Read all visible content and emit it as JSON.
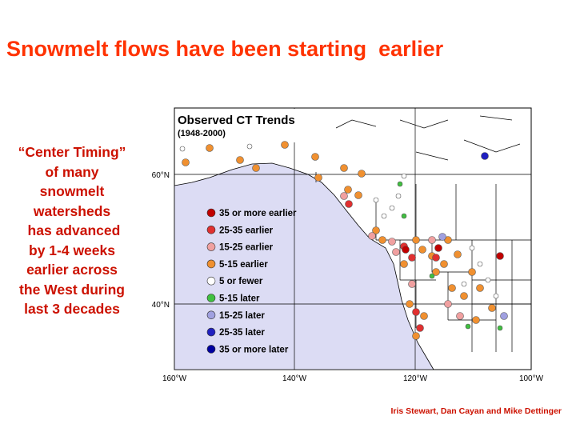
{
  "title": "Snowmelt flows have been starting  earlier",
  "description": [
    "“Center Timing”",
    "of many",
    "snowmelt",
    "watersheds",
    " has advanced",
    "by 1-4 weeks",
    "earlier across",
    "the West during",
    "last 3 decades"
  ],
  "map": {
    "title": "Observed CT Trends",
    "subtitle": "(1948-2000)",
    "latitude_labels": [
      "60°N",
      "40°N"
    ],
    "longitude_labels": [
      "160°W",
      "140°W",
      "120°W",
      "100°W"
    ],
    "legend": [
      {
        "label": "35 or more earlier",
        "color": "#c00000"
      },
      {
        "label": "25-35 earlier",
        "color": "#e03030"
      },
      {
        "label": "15-25 earlier",
        "color": "#f0a0a0"
      },
      {
        "label": "5-15 earlier",
        "color": "#f09030"
      },
      {
        "label": "5 or fewer",
        "color": "#ffffff"
      },
      {
        "label": "5-15 later",
        "color": "#40c040"
      },
      {
        "label": "15-25 later",
        "color": "#a0a0e0"
      },
      {
        "label": "25-35 later",
        "color": "#2020c0"
      },
      {
        "label": "35 or more later",
        "color": "#0000a0"
      }
    ]
  },
  "credit": "Iris Stewart, Dan Cayan and Mike Dettinger"
}
